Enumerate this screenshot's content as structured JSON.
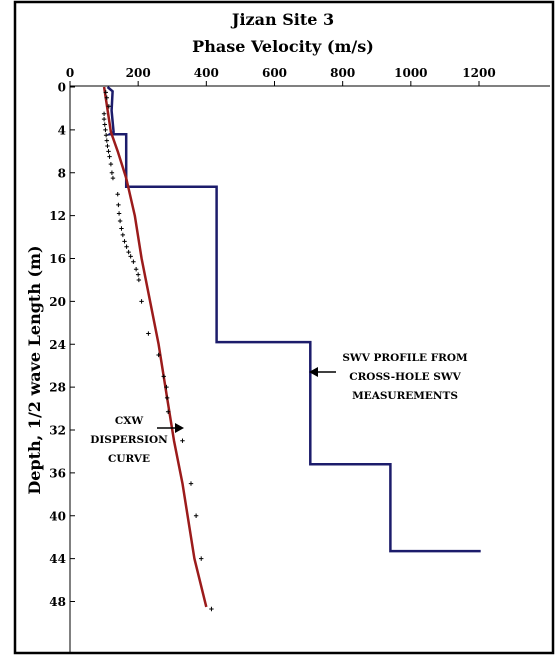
{
  "chart_data": {
    "type": "line",
    "title": "Jizan Site 3",
    "xlabel": "Phase Velocity (m/s)",
    "ylabel": "Depth, 1/2 wave Length (m)",
    "xlim": [
      0,
      1200
    ],
    "ylim": [
      0,
      52
    ],
    "x_ticks": [
      "0",
      "200",
      "400",
      "600",
      "800",
      "1000",
      "1200"
    ],
    "y_ticks": [
      "0",
      "4",
      "8",
      "12",
      "16",
      "20",
      "24",
      "28",
      "32",
      "36",
      "40",
      "44",
      "48"
    ],
    "y_inverted": true,
    "x_axis_position": "top",
    "grid": false,
    "colors": {
      "swv_profile": "#1c1c6b",
      "cxw_curve": "#9b1b1b",
      "points": "#000000"
    },
    "series": [
      {
        "name": "SWV PROFILE FROM CROSS-HOLE SWV MEASUREMENTS",
        "points": [
          [
            110,
            0
          ],
          [
            125,
            0.4
          ],
          [
            122,
            2.2
          ],
          [
            128,
            4.2
          ],
          [
            117,
            4.4
          ],
          [
            165,
            4.4
          ],
          [
            165,
            9.3
          ],
          [
            430,
            9.3
          ],
          [
            430,
            23.8
          ],
          [
            705,
            23.8
          ],
          [
            705,
            35.2
          ],
          [
            940,
            35.2
          ],
          [
            940,
            43.3
          ],
          [
            1205,
            43.3
          ]
        ]
      },
      {
        "name": "CXW DISPERSION CURVE",
        "points": [
          [
            100,
            0
          ],
          [
            120,
            4.2
          ],
          [
            140,
            6
          ],
          [
            165,
            8.5
          ],
          [
            190,
            12
          ],
          [
            210,
            16
          ],
          [
            235,
            20
          ],
          [
            260,
            24
          ],
          [
            285,
            29
          ],
          [
            305,
            33
          ],
          [
            330,
            37
          ],
          [
            365,
            44
          ],
          [
            400,
            48.5
          ]
        ]
      },
      {
        "name": "dispersion points",
        "points": [
          [
            105,
            0.5
          ],
          [
            108,
            1
          ],
          [
            114,
            1.8
          ],
          [
            100,
            2.5
          ],
          [
            100,
            3
          ],
          [
            102,
            3.5
          ],
          [
            104,
            4
          ],
          [
            106,
            4.5
          ],
          [
            108,
            5
          ],
          [
            110,
            5.5
          ],
          [
            113,
            6
          ],
          [
            116,
            6.5
          ],
          [
            120,
            7.2
          ],
          [
            123,
            8
          ],
          [
            126,
            8.5
          ],
          [
            140,
            10
          ],
          [
            142,
            11
          ],
          [
            144,
            11.8
          ],
          [
            147,
            12.5
          ],
          [
            151,
            13.2
          ],
          [
            155,
            13.8
          ],
          [
            160,
            14.4
          ],
          [
            166,
            14.9
          ],
          [
            172,
            15.4
          ],
          [
            178,
            15.8
          ],
          [
            186,
            16.3
          ],
          [
            194,
            17
          ],
          [
            200,
            17.5
          ],
          [
            202,
            18
          ],
          [
            210,
            20
          ],
          [
            230,
            23
          ],
          [
            260,
            25
          ],
          [
            275,
            27
          ],
          [
            283,
            28
          ],
          [
            285,
            29
          ],
          [
            288,
            30.3
          ],
          [
            330,
            33
          ],
          [
            355,
            37
          ],
          [
            370,
            40
          ],
          [
            385,
            44
          ],
          [
            415,
            48.7
          ]
        ]
      }
    ],
    "annotations": [
      {
        "lines": [
          "SWV PROFILE FROM",
          "CROSS-HOLE SWV",
          "MEASUREMENTS"
        ]
      },
      {
        "lines": [
          "CXW",
          "DISPERSION",
          "CURVE"
        ]
      }
    ]
  }
}
